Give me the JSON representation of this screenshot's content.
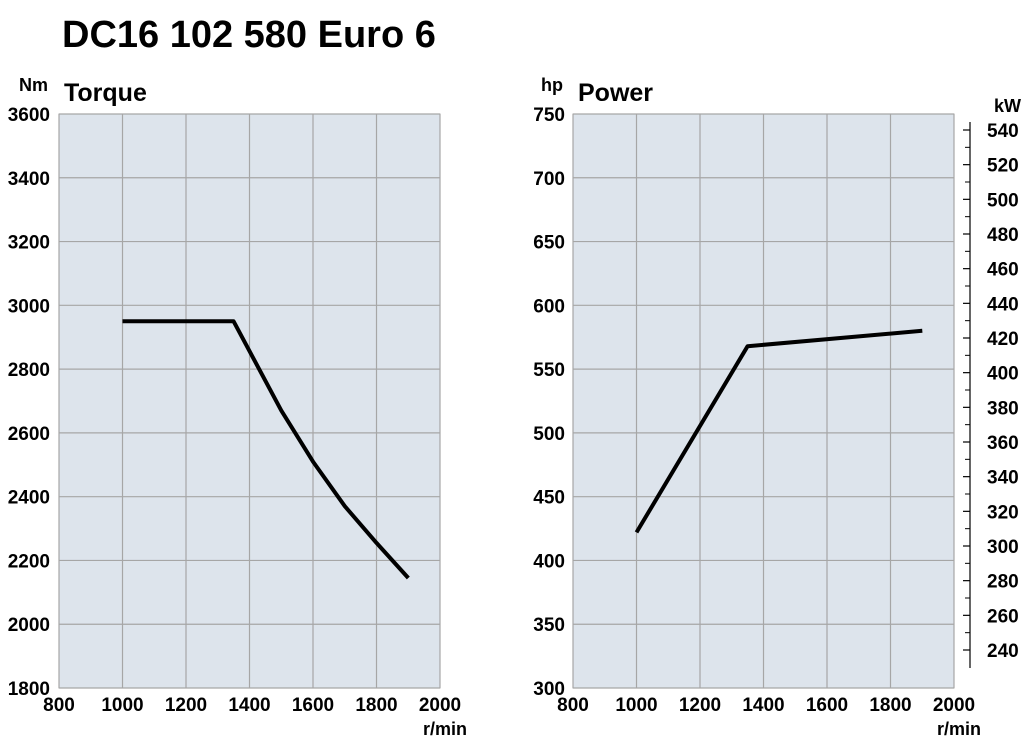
{
  "title": "DC16 102 580 Euro 6",
  "chart_data": [
    {
      "type": "line",
      "title": "Torque",
      "ylabel": "Nm",
      "xlabel": "r/min",
      "xlim": [
        800,
        2000
      ],
      "ylim": [
        1800,
        3600
      ],
      "x_ticks": [
        800,
        1000,
        1200,
        1400,
        1600,
        1800,
        2000
      ],
      "y_ticks": [
        1800,
        2000,
        2200,
        2400,
        2600,
        2800,
        3000,
        3200,
        3400,
        3600
      ],
      "grid": true,
      "series": [
        {
          "x": [
            1000,
            1350,
            1500,
            1600,
            1700,
            1800,
            1900
          ],
          "y": [
            2950,
            2950,
            2670,
            2510,
            2370,
            2255,
            2145
          ]
        }
      ]
    },
    {
      "type": "line",
      "title": "Power",
      "ylabel": "hp",
      "y2label": "kW",
      "xlabel": "r/min",
      "xlim": [
        800,
        2000
      ],
      "ylim": [
        300,
        750
      ],
      "x_ticks": [
        800,
        1000,
        1200,
        1400,
        1600,
        1800,
        2000
      ],
      "y_ticks": [
        300,
        350,
        400,
        450,
        500,
        550,
        600,
        650,
        700,
        750
      ],
      "y2_ticks": [
        240,
        260,
        280,
        300,
        320,
        340,
        360,
        380,
        400,
        420,
        440,
        460,
        480,
        500,
        520,
        540
      ],
      "grid": true,
      "series": [
        {
          "x": [
            1000,
            1350,
            1900
          ],
          "y": [
            422,
            568,
            580
          ]
        }
      ]
    }
  ]
}
